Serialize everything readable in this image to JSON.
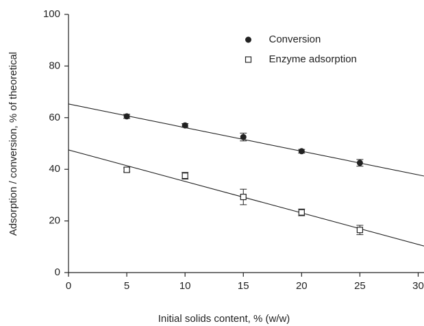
{
  "chart_data": {
    "type": "scatter",
    "xlabel": "Initial solids content, % (w/w)",
    "ylabel": "Adsorption / conversion, % of theoretical",
    "xlim": [
      0,
      30.5
    ],
    "ylim": [
      0,
      100
    ],
    "xticks": [
      0,
      5,
      10,
      15,
      20,
      25,
      30
    ],
    "yticks": [
      0,
      20,
      40,
      60,
      80,
      100
    ],
    "legend": "upper center",
    "series": [
      {
        "name": "Conversion",
        "color": "#222222",
        "marker": "circle",
        "x": [
          5,
          10,
          15,
          20,
          25
        ],
        "values": [
          60.5,
          57,
          52.5,
          47,
          42.5
        ],
        "errors": [
          0.8,
          0.7,
          1.5,
          0.7,
          1.3
        ],
        "fit": {
          "x": [
            0,
            30.5
          ],
          "values": [
            65.3,
            37.4
          ]
        }
      },
      {
        "name": "Enzyme adsorption",
        "color": "#222222",
        "marker": "square",
        "x": [
          5,
          10,
          15,
          20,
          25
        ],
        "values": [
          39.8,
          37.5,
          29.3,
          23.3,
          16.5
        ],
        "errors": [
          0.8,
          1.3,
          3,
          1.3,
          1.8
        ],
        "fit": {
          "x": [
            0,
            30.5
          ],
          "values": [
            47.5,
            10.3
          ]
        }
      }
    ]
  }
}
